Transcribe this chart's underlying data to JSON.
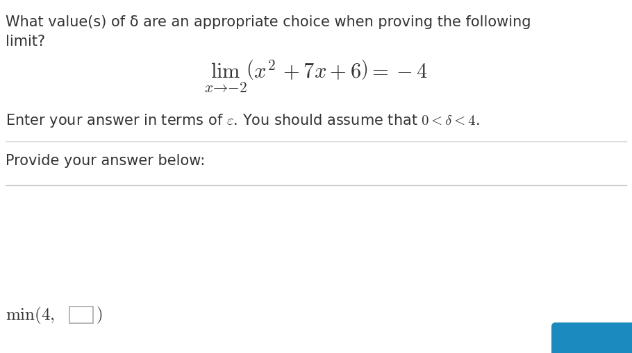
{
  "bg_color": "#ffffff",
  "text_color": "#333333",
  "line1": "What value(s) of δ are an appropriate choice when proving the following",
  "line2": "limit?",
  "instruction": "Enter your answer in terms of ε. You should assume that 0 < δ < 4.",
  "prompt": "Provide your answer below:",
  "separator_color": "#cccccc",
  "button_color": "#1a8abf",
  "box_color": "#ffffff",
  "box_border_color": "#aaaaaa",
  "font_size_text": 15,
  "font_size_math": 22,
  "font_size_instruction": 15,
  "font_size_min": 16
}
